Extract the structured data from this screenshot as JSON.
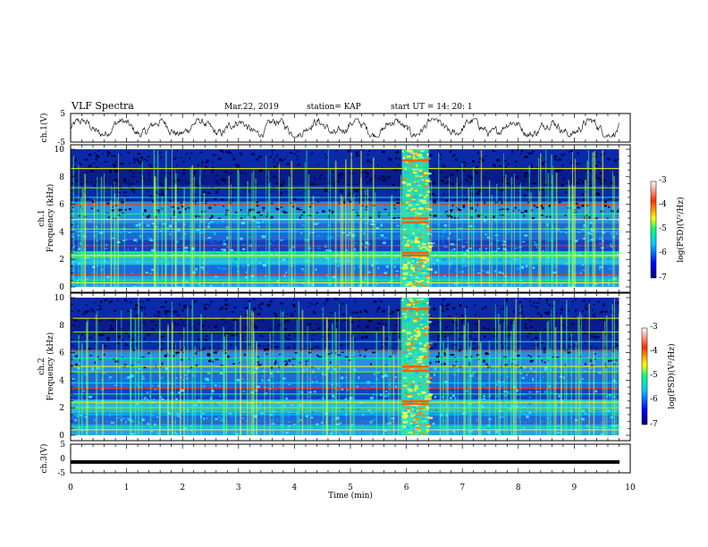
{
  "header": {
    "title": "VLF Spectra",
    "date": "Mar.22, 2019",
    "station": "station= KAP",
    "start": "start  UT =   14: 20: 1"
  },
  "chart_data": [
    {
      "type": "line",
      "ylabel": "ch.1(V)",
      "ylim": [
        -5,
        5
      ],
      "yticks": [
        "5",
        "-5"
      ],
      "xlim": [
        0,
        10
      ]
    },
    {
      "type": "heatmap",
      "ylabel_line1": "ch.1",
      "ylabel_line2": "Frequency (kHz)",
      "ylim": [
        0,
        10
      ],
      "yticks": [
        "0",
        "2",
        "4",
        "6",
        "8",
        "10"
      ],
      "xlim": [
        0,
        10
      ],
      "colorbar": {
        "label": "log(PSD)(V²/Hz)",
        "range": [
          -7,
          -3
        ],
        "ticks": [
          "-3",
          "-4",
          "-5",
          "-6",
          "-7"
        ]
      }
    },
    {
      "type": "heatmap",
      "ylabel_line1": "ch.2",
      "ylabel_line2": "Frequency (kHz)",
      "ylim": [
        0,
        10
      ],
      "yticks": [
        "0",
        "2",
        "4",
        "6",
        "8",
        "10"
      ],
      "xlim": [
        0,
        10
      ],
      "colorbar": {
        "label": "log(PSD)(V²/Hz)",
        "range": [
          -7,
          -3
        ],
        "ticks": [
          "-3",
          "-4",
          "-5",
          "-6",
          "-7"
        ]
      }
    },
    {
      "type": "line",
      "ylabel": "ch.3(V)",
      "ylim": [
        -5,
        5
      ],
      "yticks": [
        "5",
        "0",
        "-5"
      ],
      "xlim": [
        0,
        10
      ],
      "xlabel": "Time (min)",
      "xticks": [
        "0",
        "1",
        "2",
        "3",
        "4",
        "5",
        "6",
        "7",
        "8",
        "9",
        "10"
      ],
      "values_constant": -1.2
    }
  ]
}
